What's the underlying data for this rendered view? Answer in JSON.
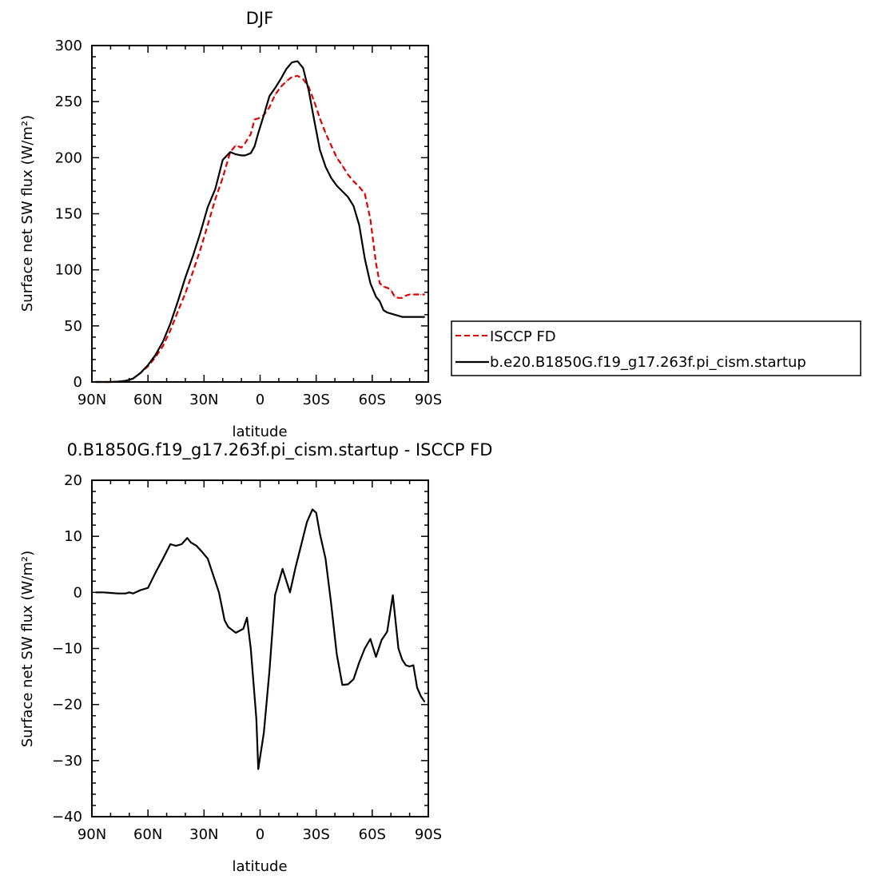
{
  "figure": {
    "top_title": "DJF",
    "bottom_title": "0.B1850G.f19_g17.263f.pi_cism.startup - ISCCP FD"
  },
  "legend": {
    "entries": [
      {
        "label": "ISCCP FD",
        "color": "#e00000",
        "style": "dashed"
      },
      {
        "label": "b.e20.B1850G.f19_g17.263f.pi_cism.startup",
        "color": "#000000",
        "style": "solid"
      }
    ]
  },
  "chart_data": [
    {
      "type": "line",
      "title": "DJF",
      "xlabel": "latitude",
      "ylabel": "Surface net SW flux (W/m²)",
      "xlim": [
        90,
        -90
      ],
      "ylim": [
        0,
        300
      ],
      "xticks": [
        90,
        60,
        30,
        0,
        -30,
        -60,
        -90
      ],
      "xticklabels": [
        "90N",
        "60N",
        "30N",
        "0",
        "30S",
        "60S",
        "90S"
      ],
      "yticks": [
        0,
        50,
        100,
        150,
        200,
        250,
        300
      ],
      "yticklabels": [
        "0",
        "50",
        "100",
        "150",
        "200",
        "250",
        "300"
      ],
      "grid": false,
      "legend_position": "right",
      "series": [
        {
          "name": "ISCCP FD",
          "color": "#e00000",
          "style": "dashed",
          "x": [
            88,
            84,
            80,
            76,
            72,
            68,
            64,
            60,
            56,
            52,
            48,
            44,
            40,
            36,
            32,
            28,
            24,
            20,
            16,
            13,
            10,
            8,
            5,
            3,
            1,
            -2,
            -5,
            -8,
            -11,
            -14,
            -17,
            -20,
            -23,
            -26,
            -29,
            -32,
            -35,
            -38,
            -41,
            -44,
            -47,
            -50,
            -53,
            -56,
            -59,
            -62,
            -64,
            -66,
            -68,
            -70,
            -72,
            -74,
            -76,
            -78,
            -80,
            -82,
            -84,
            -86,
            -88
          ],
          "y": [
            0,
            0,
            0,
            0.3,
            1,
            3,
            8,
            14,
            22,
            32,
            46,
            63,
            79,
            98,
            118,
            140,
            163,
            182,
            205,
            211,
            209,
            213,
            221,
            234,
            235,
            238,
            245,
            256,
            263,
            268,
            272,
            273,
            270,
            263,
            250,
            235,
            222,
            211,
            200,
            193,
            185,
            179,
            174,
            168,
            145,
            106,
            88,
            85,
            84,
            82,
            76,
            75,
            75,
            77,
            78,
            78,
            78,
            78,
            78
          ]
        },
        {
          "name": "b.e20.B1850G.f19_g17.263f.pi_cism.startup",
          "color": "#000000",
          "style": "solid",
          "x": [
            88,
            84,
            80,
            76,
            72,
            68,
            64,
            60,
            56,
            52,
            48,
            44,
            40,
            36,
            32,
            28,
            24,
            20,
            16,
            13,
            10,
            8,
            5,
            3,
            1,
            -2,
            -5,
            -8,
            -11,
            -14,
            -17,
            -20,
            -23,
            -26,
            -29,
            -32,
            -35,
            -38,
            -41,
            -44,
            -47,
            -50,
            -53,
            -56,
            -59,
            -62,
            -64,
            -66,
            -68,
            -70,
            -72,
            -74,
            -76,
            -78,
            -80,
            -82,
            -84,
            -86,
            -88
          ],
          "y": [
            0,
            0,
            0,
            0.3,
            1,
            3,
            8,
            15,
            24,
            36,
            52,
            72,
            93,
            112,
            133,
            156,
            172,
            198,
            205,
            203,
            202,
            202,
            204,
            210,
            222,
            238,
            255,
            262,
            270,
            279,
            285,
            286,
            280,
            260,
            233,
            207,
            192,
            182,
            175,
            170,
            165,
            157,
            140,
            110,
            88,
            76,
            72,
            64,
            62,
            61,
            60,
            59,
            58,
            58,
            58,
            58,
            58,
            58,
            58
          ]
        }
      ]
    },
    {
      "type": "line",
      "title": "0.B1850G.f19_g17.263f.pi_cism.startup - ISCCP FD",
      "xlabel": "latitude",
      "ylabel": "Surface net SW flux (W/m²)",
      "xlim": [
        90,
        -90
      ],
      "ylim": [
        -40,
        20
      ],
      "xticks": [
        90,
        60,
        30,
        0,
        -30,
        -60,
        -90
      ],
      "xticklabels": [
        "90N",
        "60N",
        "30N",
        "0",
        "30S",
        "60S",
        "90S"
      ],
      "yticks": [
        -40,
        -30,
        -20,
        -10,
        0,
        10,
        20
      ],
      "yticklabels": [
        "-40",
        "-30",
        "-20",
        "-10",
        "0",
        "10",
        "20"
      ],
      "grid": false,
      "series": [
        {
          "color": "#000000",
          "style": "solid",
          "x": [
            88,
            84,
            80,
            76,
            72,
            70,
            68,
            64,
            60,
            56,
            52,
            48,
            45,
            42,
            39,
            37,
            34,
            31,
            28,
            25,
            22,
            19,
            17,
            13,
            9,
            7,
            5,
            2,
            1,
            -2,
            -5,
            -8,
            -12,
            -16,
            -19,
            -22,
            -25,
            -28,
            -30,
            -32,
            -35,
            -38,
            -41,
            -44,
            -47,
            -50,
            -53,
            -56,
            -59,
            -62,
            -65,
            -68,
            -71,
            -74,
            -76,
            -78,
            -80,
            -82,
            -84,
            -86,
            -88
          ],
          "y": [
            0,
            0,
            -0.1,
            -0.2,
            -0.2,
            0,
            -0.2,
            0.4,
            0.8,
            3.5,
            6,
            8.6,
            8.3,
            8.6,
            9.7,
            8.9,
            8.3,
            7.2,
            6,
            3,
            0,
            -5,
            -6.2,
            -7.2,
            -6.5,
            -4.5,
            -10,
            -22.5,
            -31.5,
            -25,
            -14,
            -0.5,
            4.2,
            0,
            4.5,
            8.5,
            12.5,
            14.8,
            14.2,
            10.5,
            6,
            -2,
            -11,
            -16.5,
            -16.4,
            -15.5,
            -12.5,
            -10,
            -8.3,
            -11.5,
            -8.5,
            -7,
            -0.5,
            -10,
            -12,
            -13,
            -13.2,
            -13,
            -17,
            -18.5,
            -19.5
          ]
        }
      ]
    }
  ]
}
